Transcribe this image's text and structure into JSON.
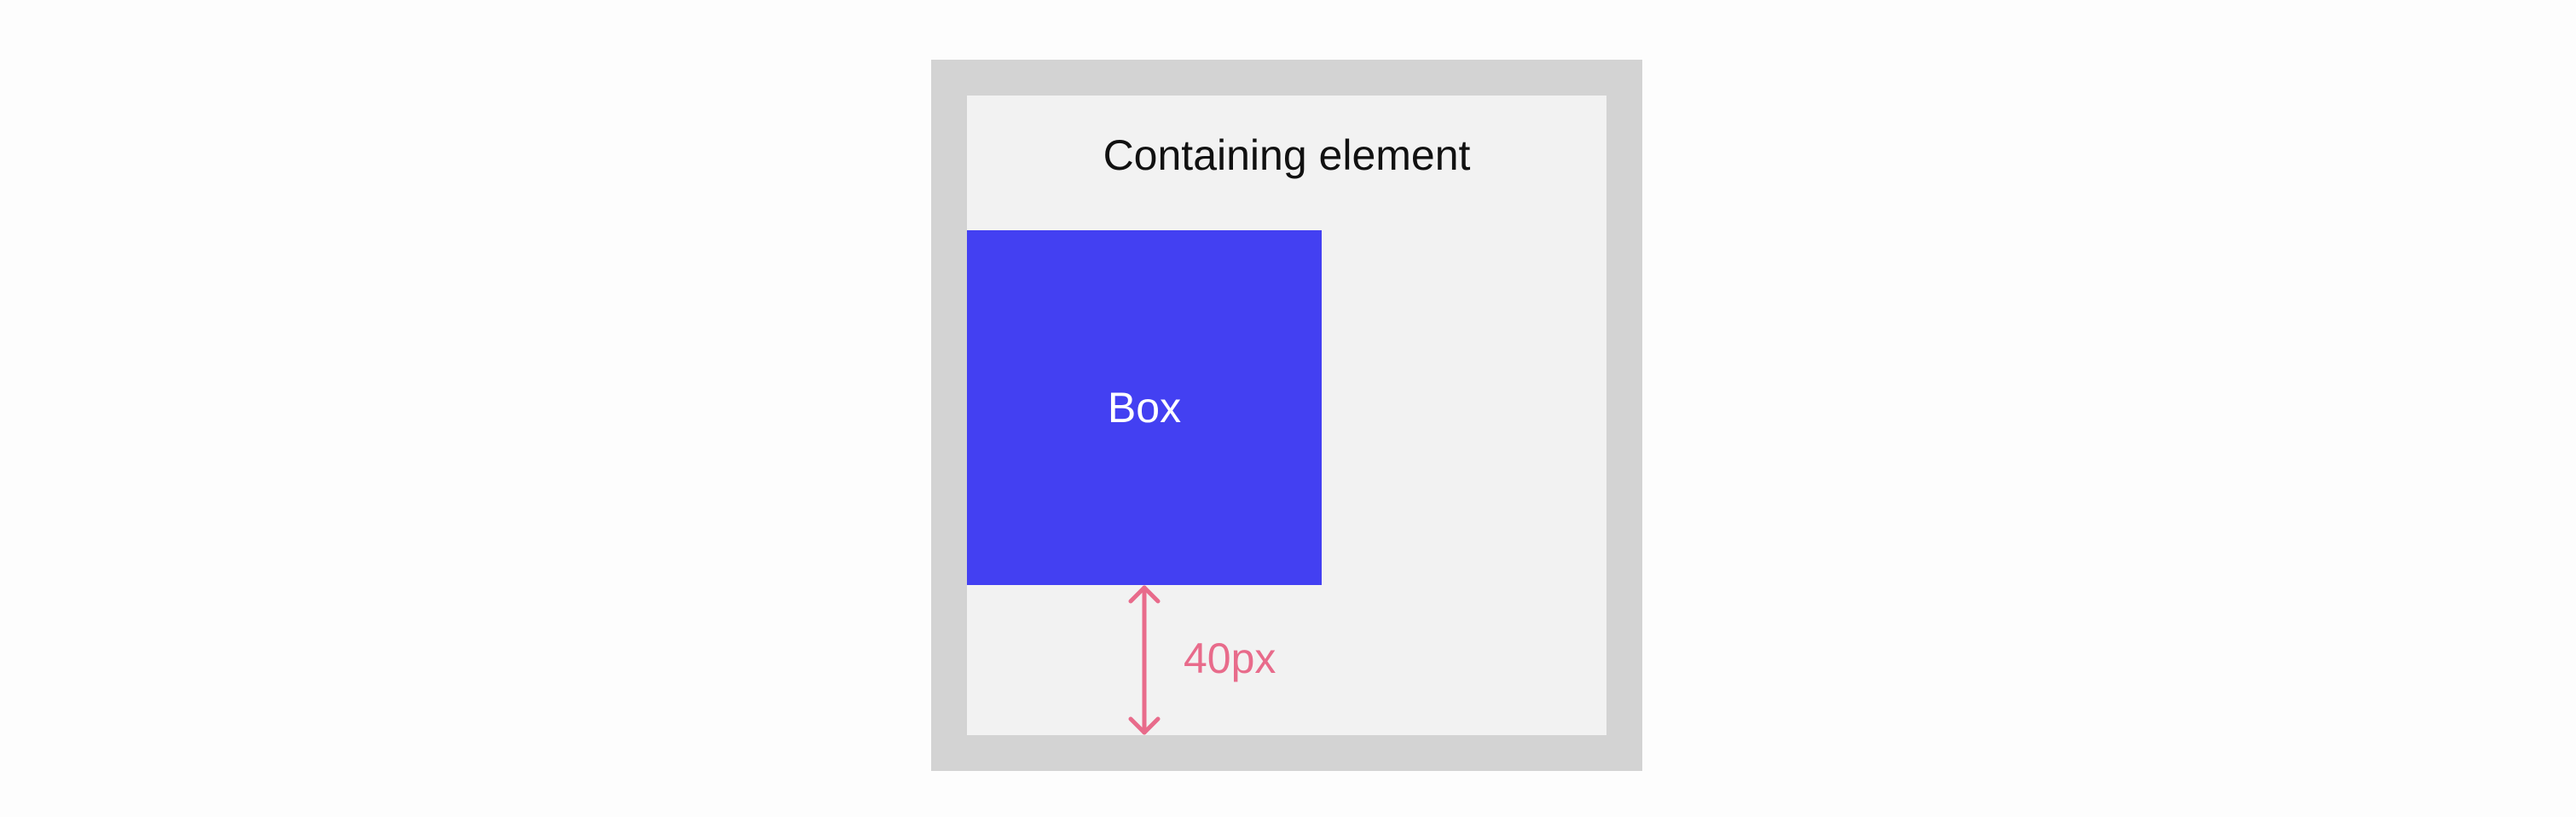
{
  "diagram": {
    "container_label": "Containing element",
    "box_label": "Box",
    "measurement_label": "40px"
  },
  "colors": {
    "page_background": "#fdfdfd",
    "container_border": "#d3d3d3",
    "container_fill": "#f2f2f2",
    "box_fill": "#4340f2",
    "box_text": "#ffffff",
    "measurement": "#e86b8b",
    "text": "#111111"
  },
  "icons": {
    "measurement_arrow": "double-headed-vertical-arrow-icon"
  }
}
